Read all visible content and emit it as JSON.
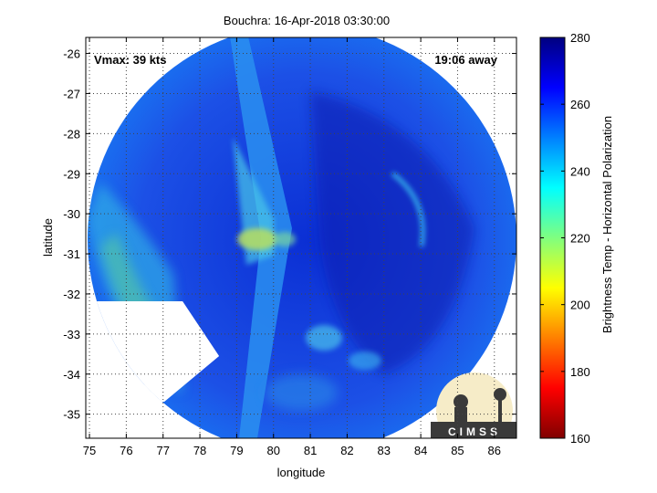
{
  "chart_data": {
    "type": "heatmap",
    "title": "Bouchra: 16-Apr-2018 03:30:00",
    "xlabel": "longitude",
    "ylabel": "latitude",
    "xlim": [
      74.9,
      86.6
    ],
    "ylim": [
      -35.6,
      -25.6
    ],
    "x_ticks": [
      75,
      76,
      77,
      78,
      79,
      80,
      81,
      82,
      83,
      84,
      85,
      86
    ],
    "y_ticks": [
      -26,
      -27,
      -28,
      -29,
      -30,
      -31,
      -32,
      -33,
      -34,
      -35
    ],
    "grid": true,
    "annotations": [
      "Vmax: 39 kts",
      "19:06 away"
    ],
    "colorbar": {
      "label": "Brightness Temp - Horizontal Polarization",
      "range": [
        160,
        280
      ],
      "ticks": [
        160,
        180,
        200,
        220,
        240,
        260,
        280
      ],
      "colormap": "jet"
    },
    "logo_text": "CIMSS"
  }
}
